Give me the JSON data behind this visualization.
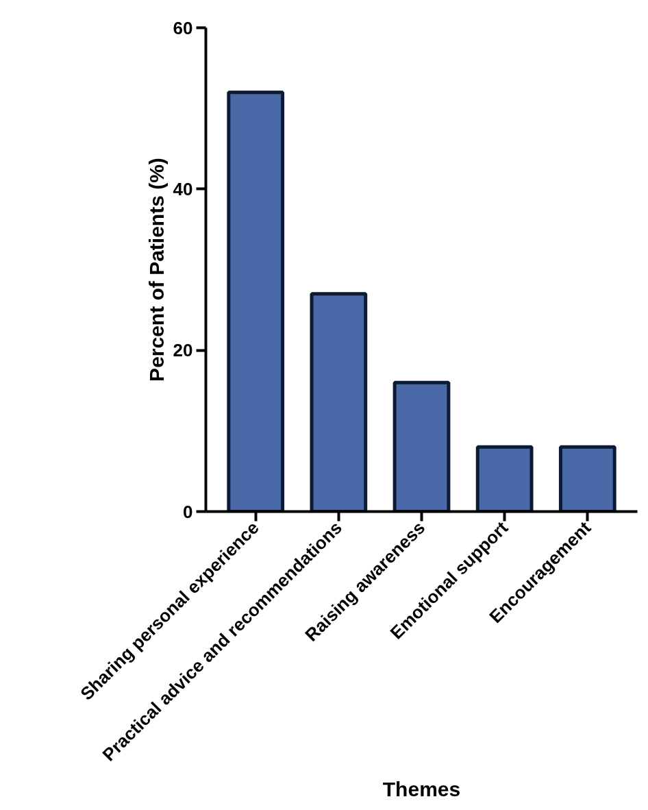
{
  "chart_data": {
    "type": "bar",
    "xlabel": "Themes",
    "ylabel": "Percent of Patients (%)",
    "categories": [
      "Sharing personal experience",
      "Practical advice and recommendations",
      "Raising awareness",
      "Emotional support",
      "Encouragement"
    ],
    "values": [
      52,
      27,
      16,
      8,
      8
    ],
    "color": "#4a69a8",
    "ylim": [
      0,
      60
    ],
    "yticks": [
      0,
      20,
      40,
      60
    ],
    "grid": false
  }
}
